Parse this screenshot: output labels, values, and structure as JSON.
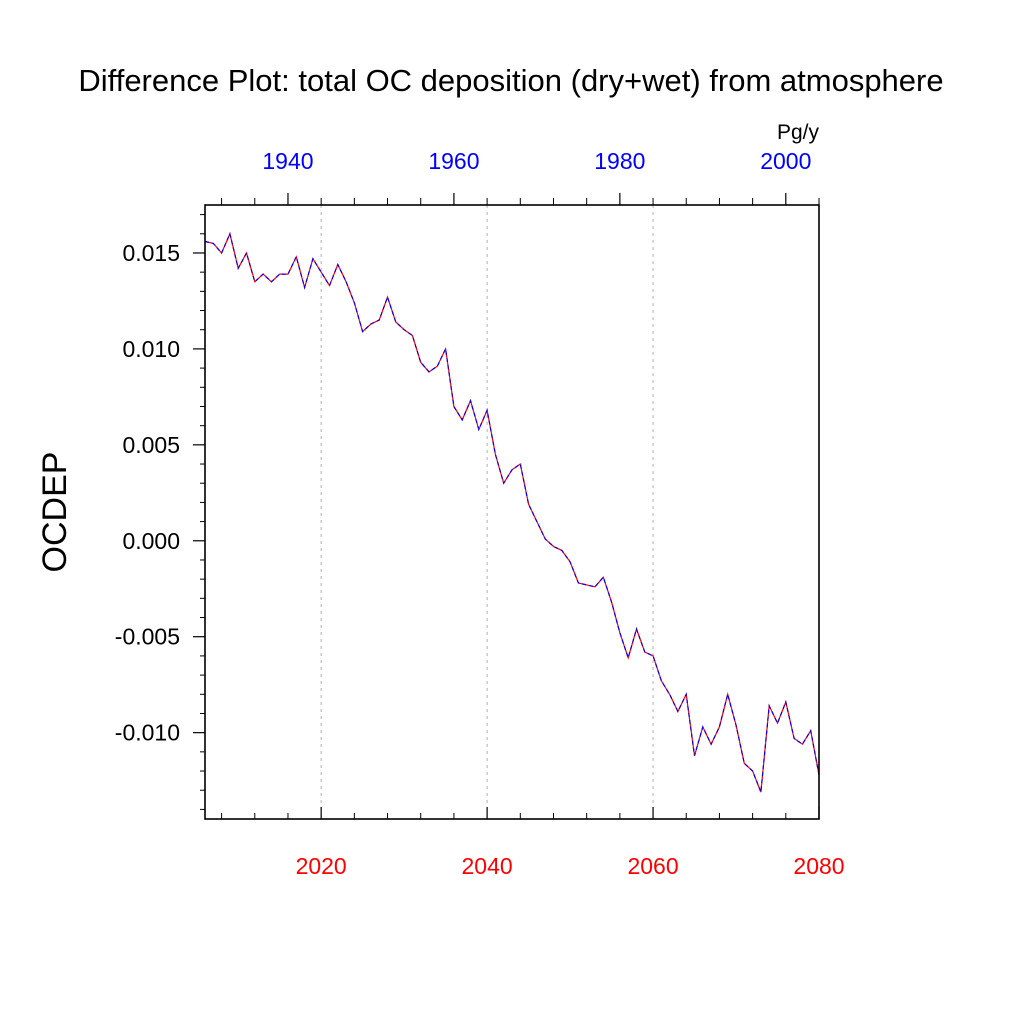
{
  "chart_data": {
    "type": "line",
    "title": "Difference Plot: total OC deposition (dry+wet) from atmosphere",
    "ylabel": "OCDEP",
    "units": "Pg/y",
    "xlabel": "",
    "xlim": [
      2006,
      2080
    ],
    "ylim": [
      -0.0145,
      0.0175
    ],
    "x_ticks": [
      {
        "value": 2020,
        "label": "2020"
      },
      {
        "value": 2040,
        "label": "2040"
      },
      {
        "value": 2060,
        "label": "2060"
      },
      {
        "value": 2080,
        "label": "2080"
      }
    ],
    "x_top_ticks": [
      {
        "value": 2016,
        "label": "1940"
      },
      {
        "value": 2036,
        "label": "1960"
      },
      {
        "value": 2056,
        "label": "1980"
      },
      {
        "value": 2076,
        "label": "2000"
      }
    ],
    "y_ticks": [
      {
        "value": 0.015,
        "label": "0.015"
      },
      {
        "value": 0.01,
        "label": "0.010"
      },
      {
        "value": 0.005,
        "label": "0.005"
      },
      {
        "value": 0.0,
        "label": "0.000"
      },
      {
        "value": -0.005,
        "label": "-0.005"
      },
      {
        "value": -0.01,
        "label": "-0.010"
      }
    ],
    "grid_x": [
      2020,
      2040,
      2060
    ],
    "x": [
      2006,
      2007,
      2008,
      2009,
      2010,
      2011,
      2012,
      2013,
      2014,
      2015,
      2016,
      2017,
      2018,
      2019,
      2020,
      2021,
      2022,
      2023,
      2024,
      2025,
      2026,
      2027,
      2028,
      2029,
      2030,
      2031,
      2032,
      2033,
      2034,
      2035,
      2036,
      2037,
      2038,
      2039,
      2040,
      2041,
      2042,
      2043,
      2044,
      2045,
      2046,
      2047,
      2048,
      2049,
      2050,
      2051,
      2052,
      2053,
      2054,
      2055,
      2056,
      2057,
      2058,
      2059,
      2060,
      2061,
      2062,
      2063,
      2064,
      2065,
      2066,
      2067,
      2068,
      2069,
      2070,
      2071,
      2072,
      2073,
      2074,
      2075,
      2076,
      2077,
      2078,
      2079,
      2080
    ],
    "series": [
      {
        "color": "#ff0000",
        "values": [
          0.0156,
          0.0155,
          0.015,
          0.016,
          0.0142,
          0.015,
          0.0135,
          0.0139,
          0.0135,
          0.0139,
          0.0139,
          0.0148,
          0.0132,
          0.0147,
          0.014,
          0.0133,
          0.0144,
          0.0135,
          0.0124,
          0.0109,
          0.0113,
          0.0115,
          0.0127,
          0.0114,
          0.011,
          0.0107,
          0.0093,
          0.0088,
          0.0091,
          0.01,
          0.007,
          0.0063,
          0.0073,
          0.0058,
          0.0068,
          0.0045,
          0.003,
          0.0037,
          0.004,
          0.0019,
          0.001,
          0.0001,
          -0.0003,
          -0.0005,
          -0.0011,
          -0.0022,
          -0.0023,
          -0.0024,
          -0.0019,
          -0.0032,
          -0.0048,
          -0.0061,
          -0.0046,
          -0.0058,
          -0.006,
          -0.0073,
          -0.008,
          -0.0089,
          -0.008,
          -0.0112,
          -0.0097,
          -0.0106,
          -0.0097,
          -0.008,
          -0.0096,
          -0.0116,
          -0.012,
          -0.0131,
          -0.0086,
          -0.0095,
          -0.0084,
          -0.0103,
          -0.0106,
          -0.0099,
          -0.0122
        ]
      },
      {
        "color": "#0000ff",
        "values": [
          0.0156,
          0.0155,
          0.015,
          0.016,
          0.0142,
          0.015,
          0.0135,
          0.0139,
          0.0135,
          0.0139,
          0.0139,
          0.0148,
          0.0132,
          0.0147,
          0.014,
          0.0133,
          0.0144,
          0.0135,
          0.0124,
          0.0109,
          0.0113,
          0.0115,
          0.0127,
          0.0114,
          0.011,
          0.0107,
          0.0093,
          0.0088,
          0.0091,
          0.01,
          0.007,
          0.0063,
          0.0073,
          0.0058,
          0.0068,
          0.0045,
          0.003,
          0.0037,
          0.004,
          0.0019,
          0.001,
          0.0001,
          -0.0003,
          -0.0005,
          -0.0011,
          -0.0022,
          -0.0023,
          -0.0024,
          -0.0019,
          -0.0032,
          -0.0048,
          -0.0061,
          -0.0046,
          -0.0058,
          -0.006,
          -0.0073,
          -0.008,
          -0.0089,
          -0.008,
          -0.0112,
          -0.0097,
          -0.0106,
          -0.0097,
          -0.008,
          -0.0096,
          -0.0116,
          -0.012,
          -0.0131,
          -0.0086,
          -0.0095,
          -0.0084,
          -0.0103,
          -0.0106,
          -0.0099,
          -0.0122
        ]
      }
    ],
    "colors": {
      "bottom_axis": "#ff0000",
      "top_axis": "#0000ff",
      "grid": "#b0b0b0",
      "frame": "#000000"
    }
  }
}
